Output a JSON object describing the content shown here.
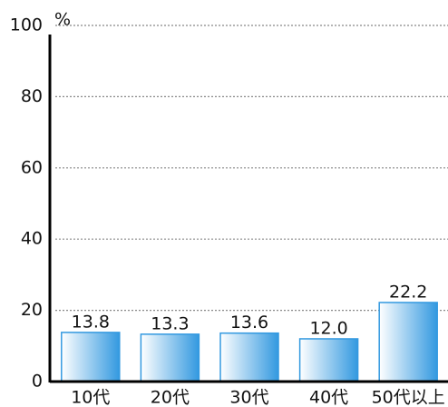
{
  "chart_data": {
    "type": "bar",
    "y_unit": "%",
    "categories": [
      "10代",
      "20代",
      "30代",
      "40代",
      "50代以上"
    ],
    "values": [
      13.8,
      13.3,
      13.6,
      12.0,
      22.2
    ],
    "value_labels": [
      "13.8",
      "13.3",
      "13.6",
      "12.0",
      "22.2"
    ],
    "color": "#3399e0",
    "ylim": [
      0,
      100
    ],
    "yticks": [
      0,
      20,
      40,
      60,
      80,
      100
    ],
    "grid": true
  }
}
